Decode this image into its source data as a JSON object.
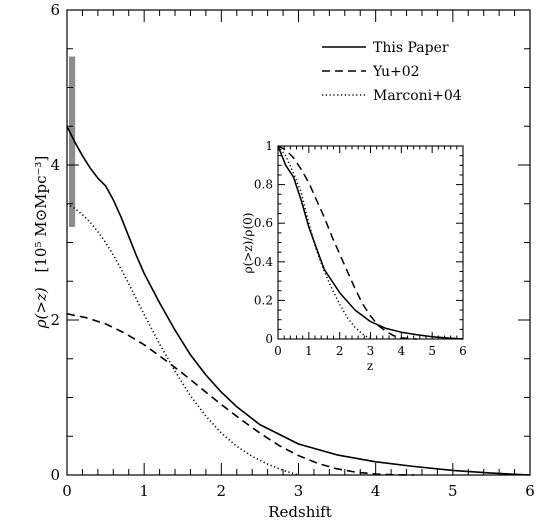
{
  "chart_data": [
    {
      "type": "line",
      "xlabel": "Redshift",
      "ylabel": "ρ(>z)",
      "ylabel_unit": "[10⁵ M⊙Mpc⁻³]",
      "xlim": [
        0,
        6
      ],
      "ylim": [
        0,
        6
      ],
      "xticks": [
        "0",
        "1",
        "2",
        "3",
        "4",
        "5",
        "6"
      ],
      "yticks": [
        "0",
        "2",
        "4",
        "6"
      ],
      "legend_position": "top-right",
      "band": {
        "x": [
          0,
          0.08
        ],
        "y": [
          3.2,
          5.4
        ],
        "color": "#8c8c8c"
      },
      "series": [
        {
          "name": "This Paper",
          "style": "solid",
          "x": [
            0,
            0.1,
            0.2,
            0.3,
            0.4,
            0.5,
            0.6,
            0.7,
            0.8,
            0.9,
            1.0,
            1.2,
            1.4,
            1.6,
            1.8,
            2.0,
            2.2,
            2.5,
            3.0,
            3.5,
            4.0,
            4.5,
            5.0,
            5.5,
            6.0
          ],
          "y": [
            4.5,
            4.3,
            4.12,
            3.96,
            3.83,
            3.73,
            3.55,
            3.33,
            3.08,
            2.83,
            2.6,
            2.22,
            1.87,
            1.55,
            1.29,
            1.07,
            0.88,
            0.65,
            0.4,
            0.26,
            0.17,
            0.11,
            0.06,
            0.025,
            0.0
          ]
        },
        {
          "name": "Yu+02",
          "style": "dashed",
          "x": [
            0,
            0.25,
            0.5,
            0.75,
            1.0,
            1.25,
            1.5,
            1.75,
            2.0,
            2.25,
            2.5,
            2.75,
            3.0,
            3.25,
            3.5,
            3.75,
            4.0,
            4.25,
            4.5
          ],
          "y": [
            2.08,
            2.03,
            1.95,
            1.83,
            1.68,
            1.5,
            1.31,
            1.11,
            0.91,
            0.72,
            0.54,
            0.38,
            0.25,
            0.15,
            0.08,
            0.035,
            0.012,
            0.003,
            0.0
          ]
        },
        {
          "name": "Marconi+04",
          "style": "dotted",
          "x": [
            0,
            0.1,
            0.2,
            0.3,
            0.4,
            0.5,
            0.6,
            0.7,
            0.8,
            0.9,
            1.0,
            1.2,
            1.4,
            1.6,
            1.8,
            2.0,
            2.2,
            2.4,
            2.6,
            2.8,
            3.0
          ],
          "y": [
            3.5,
            3.44,
            3.36,
            3.26,
            3.14,
            3.0,
            2.84,
            2.66,
            2.47,
            2.27,
            2.07,
            1.69,
            1.34,
            1.02,
            0.76,
            0.54,
            0.37,
            0.24,
            0.14,
            0.06,
            0.0
          ]
        }
      ]
    },
    {
      "type": "line",
      "inset": true,
      "xlabel": "z",
      "ylabel": "ρ(>z)/ρ(0)",
      "xlim": [
        0,
        6
      ],
      "ylim": [
        0,
        1
      ],
      "xticks": [
        "0",
        "1",
        "2",
        "3",
        "4",
        "5",
        "6"
      ],
      "yticks": [
        "0",
        "0.2",
        "0.4",
        "0.6",
        "0.8",
        "1"
      ],
      "series": [
        {
          "name": "This Paper",
          "style": "solid",
          "x": [
            0,
            0.25,
            0.5,
            0.75,
            1.0,
            1.25,
            1.5,
            1.75,
            2.0,
            2.5,
            3.0,
            3.5,
            4.0,
            4.5,
            5.0,
            5.5,
            6.0
          ],
          "y": [
            1.0,
            0.9,
            0.84,
            0.72,
            0.58,
            0.47,
            0.36,
            0.3,
            0.24,
            0.15,
            0.09,
            0.055,
            0.035,
            0.022,
            0.012,
            0.005,
            0.0
          ]
        },
        {
          "name": "Yu+02",
          "style": "dashed",
          "x": [
            0,
            0.25,
            0.5,
            0.75,
            1.0,
            1.25,
            1.5,
            1.75,
            2.0,
            2.25,
            2.5,
            2.75,
            3.0,
            3.25,
            3.5,
            3.75,
            4.0,
            4.25,
            4.5
          ],
          "y": [
            1.0,
            0.98,
            0.94,
            0.88,
            0.81,
            0.72,
            0.63,
            0.53,
            0.44,
            0.35,
            0.26,
            0.18,
            0.12,
            0.07,
            0.04,
            0.017,
            0.006,
            0.002,
            0.0
          ]
        },
        {
          "name": "Marconi+04",
          "style": "dotted",
          "x": [
            0,
            0.25,
            0.5,
            0.75,
            1.0,
            1.25,
            1.5,
            1.75,
            2.0,
            2.25,
            2.5,
            2.75,
            3.0
          ],
          "y": [
            1.0,
            0.95,
            0.86,
            0.76,
            0.6,
            0.46,
            0.35,
            0.26,
            0.18,
            0.11,
            0.06,
            0.025,
            0.0
          ]
        }
      ]
    }
  ]
}
